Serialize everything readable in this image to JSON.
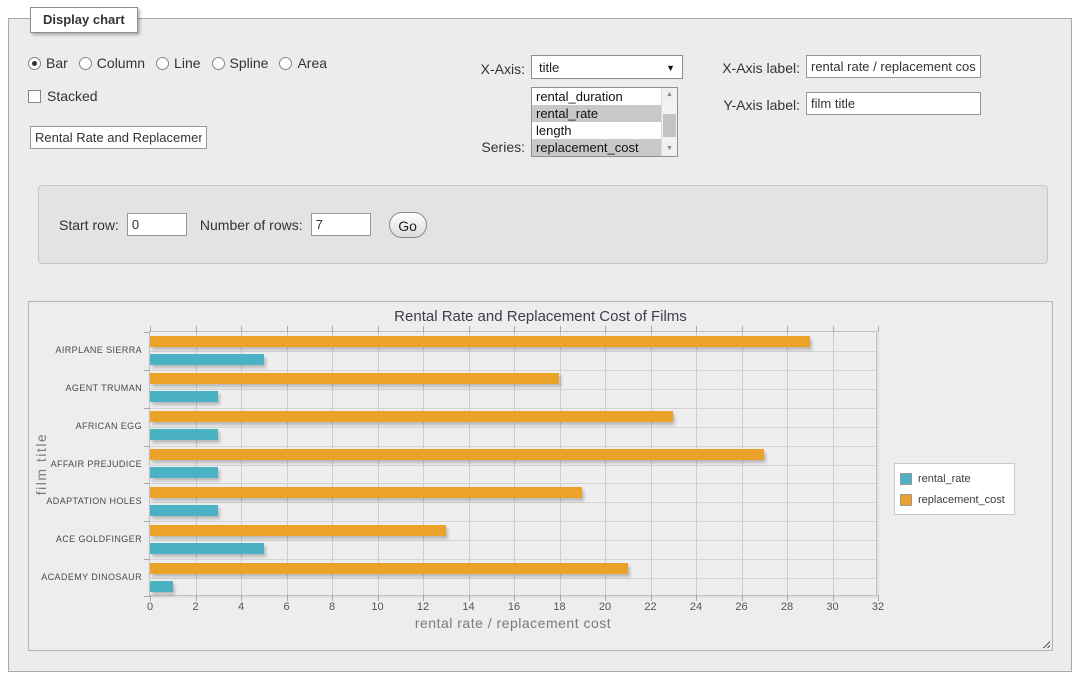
{
  "panel": {
    "tab_label": "Display chart"
  },
  "chart_type_options": [
    {
      "label": "Bar",
      "selected": true
    },
    {
      "label": "Column",
      "selected": false
    },
    {
      "label": "Line",
      "selected": false
    },
    {
      "label": "Spline",
      "selected": false
    },
    {
      "label": "Area",
      "selected": false
    }
  ],
  "stacked": {
    "label": "Stacked",
    "checked": false
  },
  "title_input": {
    "value": "Rental Rate and Replacement Cost of Films"
  },
  "x_axis_select": {
    "label": "X-Axis:",
    "value": "title"
  },
  "series_list": {
    "label": "Series:",
    "options": [
      {
        "label": "rental_duration",
        "selected": false
      },
      {
        "label": "rental_rate",
        "selected": true
      },
      {
        "label": "length",
        "selected": false
      },
      {
        "label": "replacement_cost",
        "selected": true
      }
    ]
  },
  "x_axis_label_field": {
    "label": "X-Axis label:",
    "value": "rental rate / replacement cost"
  },
  "y_axis_label_field": {
    "label": "Y-Axis label:",
    "value": "film title"
  },
  "pagination": {
    "start_row_label": "Start row:",
    "start_row_value": "0",
    "rows_label": "Number of rows:",
    "rows_value": "7",
    "go_label": "Go"
  },
  "chart_data": {
    "type": "bar",
    "orientation": "horizontal",
    "title": "Rental Rate and Replacement Cost of Films",
    "xlabel": "rental rate / replacement cost",
    "ylabel": "film title",
    "categories": [
      "AIRPLANE SIERRA",
      "AGENT TRUMAN",
      "AFRICAN EGG",
      "AFFAIR PREJUDICE",
      "ADAPTATION HOLES",
      "ACE GOLDFINGER",
      "ACADEMY DINOSAUR"
    ],
    "series": [
      {
        "name": "rental_rate",
        "color": "#4bb2c5",
        "values": [
          4.99,
          2.99,
          2.99,
          2.99,
          2.99,
          4.99,
          0.99
        ]
      },
      {
        "name": "replacement_cost",
        "color": "#eaa228",
        "values": [
          28.99,
          17.99,
          22.99,
          26.99,
          18.99,
          12.99,
          20.99
        ]
      }
    ],
    "xlim": [
      0,
      32
    ],
    "xtick_step": 2,
    "grid": true,
    "legend_position": "right",
    "bar_row_order": [
      1,
      0
    ]
  }
}
